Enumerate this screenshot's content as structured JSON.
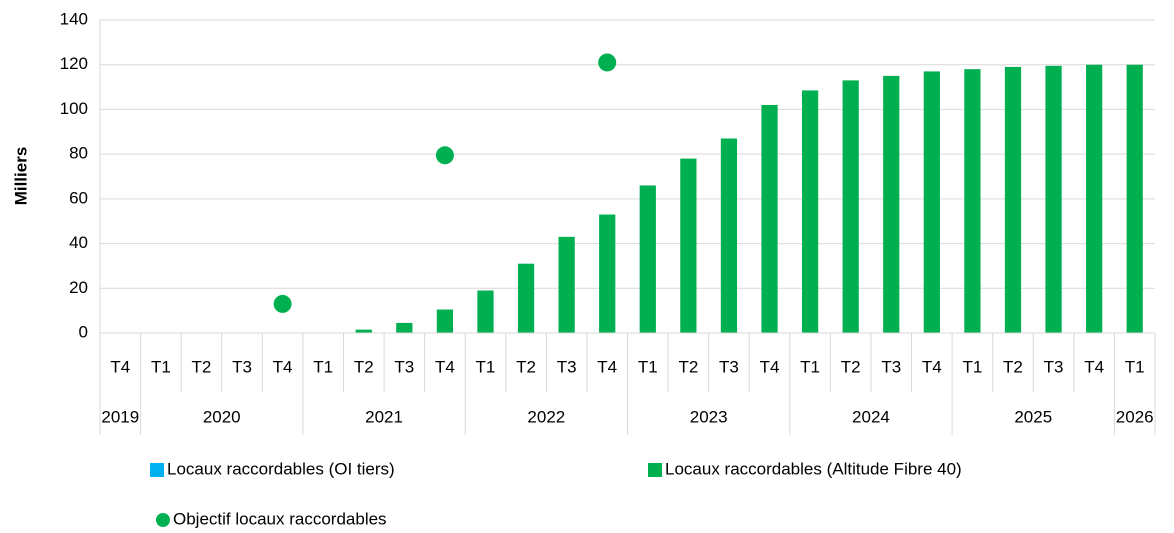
{
  "chart_data": {
    "type": "bar",
    "y_label": "Milliers",
    "categories": [
      "T4",
      "T1",
      "T2",
      "T3",
      "T4",
      "T1",
      "T2",
      "T3",
      "T4",
      "T1",
      "T2",
      "T3",
      "T4",
      "T1",
      "T2",
      "T3",
      "T4",
      "T1",
      "T2",
      "T3",
      "T4",
      "T1",
      "T2",
      "T3",
      "T4",
      "T1"
    ],
    "category_years": [
      "2019",
      "2020",
      null,
      null,
      null,
      "2021",
      null,
      null,
      null,
      "2022",
      null,
      null,
      null,
      "2023",
      null,
      null,
      null,
      "2024",
      null,
      null,
      null,
      "2025",
      null,
      null,
      null,
      "2026"
    ],
    "series": [
      {
        "name": "Locaux raccordables (OI tiers)",
        "type": "bar",
        "color": "#00b0f0",
        "values": [
          0,
          0,
          0,
          0,
          0,
          0,
          0,
          0,
          0,
          0,
          0,
          0,
          0,
          0,
          0,
          0,
          0,
          0,
          0,
          0,
          0,
          0,
          0,
          0,
          0,
          0
        ]
      },
      {
        "name": "Locaux raccordables (Altitude Fibre 40)",
        "type": "bar",
        "color": "#00b050",
        "values": [
          0,
          0,
          0,
          0,
          0,
          0,
          1.5,
          4.5,
          10.5,
          19,
          31,
          43,
          53,
          66,
          78,
          87,
          102,
          108.5,
          113,
          115,
          117,
          118,
          119,
          119.5,
          120,
          120
        ]
      },
      {
        "name": "Objectif locaux raccordables",
        "type": "scatter",
        "color": "#00b050",
        "values": [
          null,
          null,
          null,
          null,
          13,
          null,
          null,
          null,
          79.5,
          null,
          null,
          null,
          121,
          null,
          null,
          null,
          null,
          null,
          null,
          null,
          null,
          null,
          null,
          null,
          null,
          null
        ]
      }
    ],
    "ylim": [
      0,
      140
    ],
    "yticks": [
      0,
      20,
      40,
      60,
      80,
      100,
      120,
      140
    ],
    "grid": true
  }
}
